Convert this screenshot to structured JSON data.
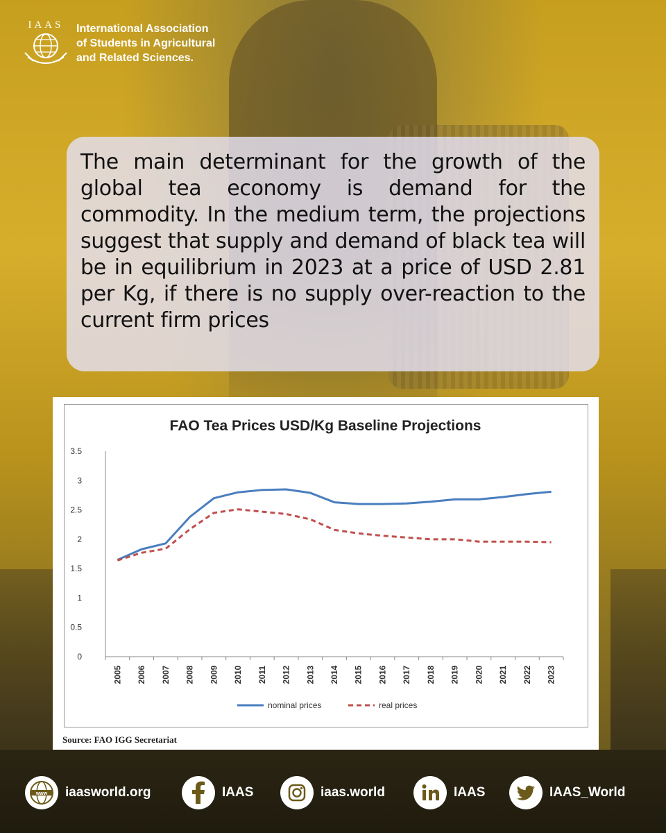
{
  "org": {
    "logo_text": "IAAS",
    "name_line1": "International Association",
    "name_line2": "of Students in Agricultural",
    "name_line3": "and Related Sciences."
  },
  "body_text": "The main determinant for the growth of the global tea economy is demand for the commodity. In the medium term, the projections suggest that supply and demand of black tea will be in equilibrium in 2023 at a price of USD 2.81 per Kg, if there is no supply over-reaction to the current firm prices",
  "source": "Source: FAO IGG Secretariat",
  "footer": {
    "website": "iaasworld.org",
    "facebook": "IAAS",
    "instagram": "iaas.world",
    "linkedin": "IAAS",
    "twitter": "IAAS_World",
    "website_icon": "globe-www-icon",
    "facebook_icon": "facebook-icon",
    "instagram_icon": "instagram-icon",
    "linkedin_icon": "linkedin-icon",
    "twitter_icon": "twitter-icon"
  },
  "chart_data": {
    "type": "line",
    "title": "FAO Tea Prices USD/Kg Baseline Projections",
    "xlabel": "",
    "ylabel": "",
    "x": [
      "2005",
      "2006",
      "2007",
      "2008",
      "2009",
      "2010",
      "2011",
      "2012",
      "2013",
      "2014",
      "2015",
      "2016",
      "2017",
      "2018",
      "2019",
      "2020",
      "2021",
      "2022",
      "2023"
    ],
    "ylim": [
      0,
      3.5
    ],
    "yticks": [
      "0",
      "0.5",
      "1",
      "1.5",
      "2",
      "2.5",
      "3",
      "3.5"
    ],
    "grid": false,
    "legend": "bottom",
    "series": [
      {
        "name": "nominal prices",
        "color": "#4a7ebf",
        "style": "solid",
        "values": [
          1.65,
          1.83,
          1.93,
          2.38,
          2.7,
          2.8,
          2.84,
          2.85,
          2.79,
          2.63,
          2.6,
          2.6,
          2.61,
          2.64,
          2.68,
          2.68,
          2.72,
          2.77,
          2.81
        ]
      },
      {
        "name": "real prices",
        "color": "#c0504d",
        "style": "dashed",
        "values": [
          1.64,
          1.77,
          1.84,
          2.17,
          2.45,
          2.51,
          2.47,
          2.43,
          2.34,
          2.16,
          2.1,
          2.06,
          2.03,
          2.0,
          2.0,
          1.96,
          1.96,
          1.96,
          1.95
        ]
      }
    ]
  }
}
